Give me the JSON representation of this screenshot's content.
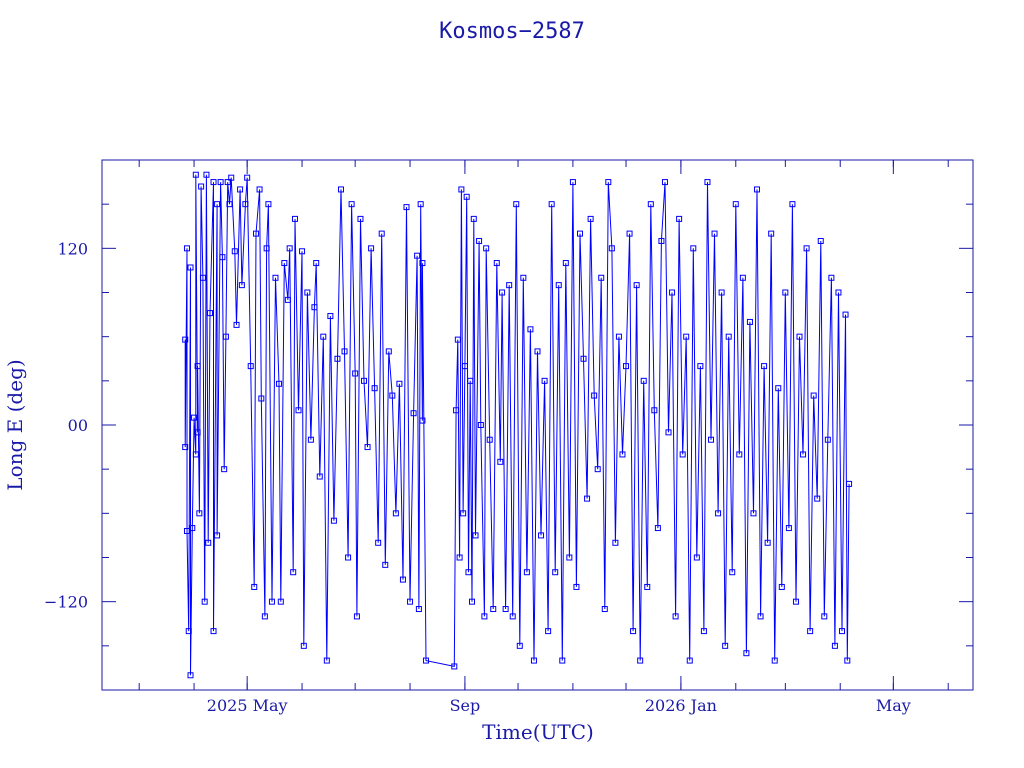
{
  "chart_data": {
    "type": "line",
    "title": "Kosmos−2587",
    "xlabel": "Time(UTC)",
    "ylabel": "Long E (deg)",
    "x_range": [
      "2025-02-08",
      "2026-06-15"
    ],
    "ylim": [
      -180,
      180
    ],
    "x_ticks": [
      {
        "date": "2025-05-01",
        "label": "2025 May"
      },
      {
        "date": "2025-09-01",
        "label": "Sep"
      },
      {
        "date": "2026-01-01",
        "label": "2026 Jan"
      },
      {
        "date": "2026-05-01",
        "label": "May"
      }
    ],
    "y_ticks": [
      {
        "value": 120,
        "label": "120"
      },
      {
        "value": 0,
        "label": "00"
      },
      {
        "value": -120,
        "label": "−120"
      }
    ],
    "grid": false,
    "marker": "square",
    "color": "#0000ff",
    "series": [
      {
        "points": [
          [
            "2025-03-27",
            58
          ],
          [
            "2025-03-27",
            -15
          ],
          [
            "2025-03-28",
            120
          ],
          [
            "2025-03-28",
            -72
          ],
          [
            "2025-03-29",
            -140
          ],
          [
            "2025-03-30",
            107
          ],
          [
            "2025-03-30",
            -170
          ],
          [
            "2025-03-31",
            -70
          ],
          [
            "2025-04-01",
            5
          ],
          [
            "2025-04-02",
            -20
          ],
          [
            "2025-04-02",
            170
          ],
          [
            "2025-04-03",
            -5
          ],
          [
            "2025-04-03",
            40
          ],
          [
            "2025-04-04",
            -60
          ],
          [
            "2025-04-05",
            162
          ],
          [
            "2025-04-06",
            100
          ],
          [
            "2025-04-07",
            -120
          ],
          [
            "2025-04-08",
            170
          ],
          [
            "2025-04-09",
            -80
          ],
          [
            "2025-04-10",
            76
          ],
          [
            "2025-04-12",
            165
          ],
          [
            "2025-04-12",
            -140
          ],
          [
            "2025-04-14",
            150
          ],
          [
            "2025-04-14",
            -75
          ],
          [
            "2025-04-16",
            165
          ],
          [
            "2025-04-17",
            114
          ],
          [
            "2025-04-18",
            -30
          ],
          [
            "2025-04-19",
            60
          ],
          [
            "2025-04-20",
            165
          ],
          [
            "2025-04-21",
            150
          ],
          [
            "2025-04-22",
            168
          ],
          [
            "2025-04-24",
            118
          ],
          [
            "2025-04-25",
            68
          ],
          [
            "2025-04-27",
            160
          ],
          [
            "2025-04-28",
            95
          ],
          [
            "2025-04-30",
            150
          ],
          [
            "2025-05-01",
            168
          ],
          [
            "2025-05-03",
            40
          ],
          [
            "2025-05-05",
            -110
          ],
          [
            "2025-05-06",
            130
          ],
          [
            "2025-05-08",
            160
          ],
          [
            "2025-05-09",
            18
          ],
          [
            "2025-05-11",
            -130
          ],
          [
            "2025-05-12",
            120
          ],
          [
            "2025-05-13",
            150
          ],
          [
            "2025-05-15",
            -120
          ],
          [
            "2025-05-17",
            100
          ],
          [
            "2025-05-19",
            28
          ],
          [
            "2025-05-20",
            -120
          ],
          [
            "2025-05-22",
            110
          ],
          [
            "2025-05-24",
            85
          ],
          [
            "2025-05-25",
            120
          ],
          [
            "2025-05-27",
            -100
          ],
          [
            "2025-05-28",
            140
          ],
          [
            "2025-05-30",
            10
          ],
          [
            "2025-06-01",
            118
          ],
          [
            "2025-06-02",
            -150
          ],
          [
            "2025-06-04",
            90
          ],
          [
            "2025-06-06",
            -10
          ],
          [
            "2025-06-08",
            80
          ],
          [
            "2025-06-09",
            110
          ],
          [
            "2025-06-11",
            -35
          ],
          [
            "2025-06-13",
            60
          ],
          [
            "2025-06-15",
            -160
          ],
          [
            "2025-06-17",
            74
          ],
          [
            "2025-06-19",
            -65
          ],
          [
            "2025-06-21",
            45
          ],
          [
            "2025-06-23",
            160
          ],
          [
            "2025-06-25",
            50
          ],
          [
            "2025-06-27",
            -90
          ],
          [
            "2025-06-29",
            150
          ],
          [
            "2025-07-01",
            35
          ],
          [
            "2025-07-02",
            -130
          ],
          [
            "2025-07-04",
            140
          ],
          [
            "2025-07-06",
            30
          ],
          [
            "2025-07-08",
            -15
          ],
          [
            "2025-07-10",
            120
          ],
          [
            "2025-07-12",
            25
          ],
          [
            "2025-07-14",
            -80
          ],
          [
            "2025-07-16",
            130
          ],
          [
            "2025-07-18",
            -95
          ],
          [
            "2025-07-20",
            50
          ],
          [
            "2025-07-22",
            20
          ],
          [
            "2025-07-24",
            -60
          ],
          [
            "2025-07-26",
            28
          ],
          [
            "2025-07-28",
            -105
          ],
          [
            "2025-07-30",
            148
          ],
          [
            "2025-08-01",
            -120
          ],
          [
            "2025-08-03",
            8
          ],
          [
            "2025-08-05",
            115
          ],
          [
            "2025-08-06",
            -125
          ],
          [
            "2025-08-07",
            150
          ],
          [
            "2025-08-08",
            3
          ],
          [
            "2025-08-08",
            110
          ],
          [
            "2025-08-10",
            -160
          ],
          [
            "2025-08-26",
            -164
          ],
          [
            "2025-08-27",
            10
          ],
          [
            "2025-08-28",
            58
          ],
          [
            "2025-08-29",
            -90
          ],
          [
            "2025-08-30",
            160
          ],
          [
            "2025-08-31",
            -60
          ],
          [
            "2025-09-01",
            40
          ],
          [
            "2025-09-02",
            155
          ],
          [
            "2025-09-03",
            -100
          ],
          [
            "2025-09-04",
            30
          ],
          [
            "2025-09-05",
            -120
          ],
          [
            "2025-09-06",
            140
          ],
          [
            "2025-09-07",
            -75
          ],
          [
            "2025-09-09",
            125
          ],
          [
            "2025-09-10",
            0
          ],
          [
            "2025-09-12",
            -130
          ],
          [
            "2025-09-13",
            120
          ],
          [
            "2025-09-15",
            -10
          ],
          [
            "2025-09-17",
            -125
          ],
          [
            "2025-09-19",
            110
          ],
          [
            "2025-09-21",
            -25
          ],
          [
            "2025-09-22",
            90
          ],
          [
            "2025-09-24",
            -125
          ],
          [
            "2025-09-26",
            95
          ],
          [
            "2025-09-28",
            -130
          ],
          [
            "2025-09-30",
            150
          ],
          [
            "2025-10-02",
            -150
          ],
          [
            "2025-10-04",
            100
          ],
          [
            "2025-10-06",
            -100
          ],
          [
            "2025-10-08",
            65
          ],
          [
            "2025-10-10",
            -160
          ],
          [
            "2025-10-12",
            50
          ],
          [
            "2025-10-14",
            -75
          ],
          [
            "2025-10-16",
            30
          ],
          [
            "2025-10-18",
            -140
          ],
          [
            "2025-10-20",
            150
          ],
          [
            "2025-10-22",
            -100
          ],
          [
            "2025-10-24",
            95
          ],
          [
            "2025-10-26",
            -160
          ],
          [
            "2025-10-28",
            110
          ],
          [
            "2025-10-30",
            -90
          ],
          [
            "2025-11-01",
            165
          ],
          [
            "2025-11-03",
            -110
          ],
          [
            "2025-11-05",
            130
          ],
          [
            "2025-11-07",
            45
          ],
          [
            "2025-11-09",
            -50
          ],
          [
            "2025-11-11",
            140
          ],
          [
            "2025-11-13",
            20
          ],
          [
            "2025-11-15",
            -30
          ],
          [
            "2025-11-17",
            100
          ],
          [
            "2025-11-19",
            -125
          ],
          [
            "2025-11-21",
            165
          ],
          [
            "2025-11-23",
            120
          ],
          [
            "2025-11-25",
            -80
          ],
          [
            "2025-11-27",
            60
          ],
          [
            "2025-11-29",
            -20
          ],
          [
            "2025-12-01",
            40
          ],
          [
            "2025-12-03",
            130
          ],
          [
            "2025-12-05",
            -140
          ],
          [
            "2025-12-07",
            95
          ],
          [
            "2025-12-09",
            -160
          ],
          [
            "2025-12-11",
            30
          ],
          [
            "2025-12-13",
            -110
          ],
          [
            "2025-12-15",
            150
          ],
          [
            "2025-12-17",
            10
          ],
          [
            "2025-12-19",
            -70
          ],
          [
            "2025-12-21",
            125
          ],
          [
            "2025-12-23",
            165
          ],
          [
            "2025-12-25",
            -5
          ],
          [
            "2025-12-27",
            90
          ],
          [
            "2025-12-29",
            -130
          ],
          [
            "2025-12-31",
            140
          ],
          [
            "2026-01-02",
            -20
          ],
          [
            "2026-01-04",
            60
          ],
          [
            "2026-01-06",
            -160
          ],
          [
            "2026-01-08",
            120
          ],
          [
            "2026-01-10",
            -90
          ],
          [
            "2026-01-12",
            40
          ],
          [
            "2026-01-14",
            -140
          ],
          [
            "2026-01-16",
            165
          ],
          [
            "2026-01-18",
            -10
          ],
          [
            "2026-01-20",
            130
          ],
          [
            "2026-01-22",
            -60
          ],
          [
            "2026-01-24",
            90
          ],
          [
            "2026-01-26",
            -150
          ],
          [
            "2026-01-28",
            60
          ],
          [
            "2026-01-30",
            -100
          ],
          [
            "2026-02-01",
            150
          ],
          [
            "2026-02-03",
            -20
          ],
          [
            "2026-02-05",
            100
          ],
          [
            "2026-02-07",
            -155
          ],
          [
            "2026-02-09",
            70
          ],
          [
            "2026-02-11",
            -60
          ],
          [
            "2026-02-13",
            160
          ],
          [
            "2026-02-15",
            -130
          ],
          [
            "2026-02-17",
            40
          ],
          [
            "2026-02-19",
            -80
          ],
          [
            "2026-02-21",
            130
          ],
          [
            "2026-02-23",
            -160
          ],
          [
            "2026-02-25",
            25
          ],
          [
            "2026-02-27",
            -110
          ],
          [
            "2026-03-01",
            90
          ],
          [
            "2026-03-03",
            -70
          ],
          [
            "2026-03-05",
            150
          ],
          [
            "2026-03-07",
            -120
          ],
          [
            "2026-03-09",
            60
          ],
          [
            "2026-03-11",
            -20
          ],
          [
            "2026-03-13",
            120
          ],
          [
            "2026-03-15",
            -140
          ],
          [
            "2026-03-17",
            20
          ],
          [
            "2026-03-19",
            -50
          ],
          [
            "2026-03-21",
            125
          ],
          [
            "2026-03-23",
            -130
          ],
          [
            "2026-03-25",
            -10
          ],
          [
            "2026-03-27",
            100
          ],
          [
            "2026-03-29",
            -150
          ],
          [
            "2026-03-31",
            90
          ],
          [
            "2026-04-02",
            -140
          ],
          [
            "2026-04-04",
            75
          ],
          [
            "2026-04-05",
            -160
          ],
          [
            "2026-04-06",
            -40
          ]
        ]
      }
    ]
  }
}
